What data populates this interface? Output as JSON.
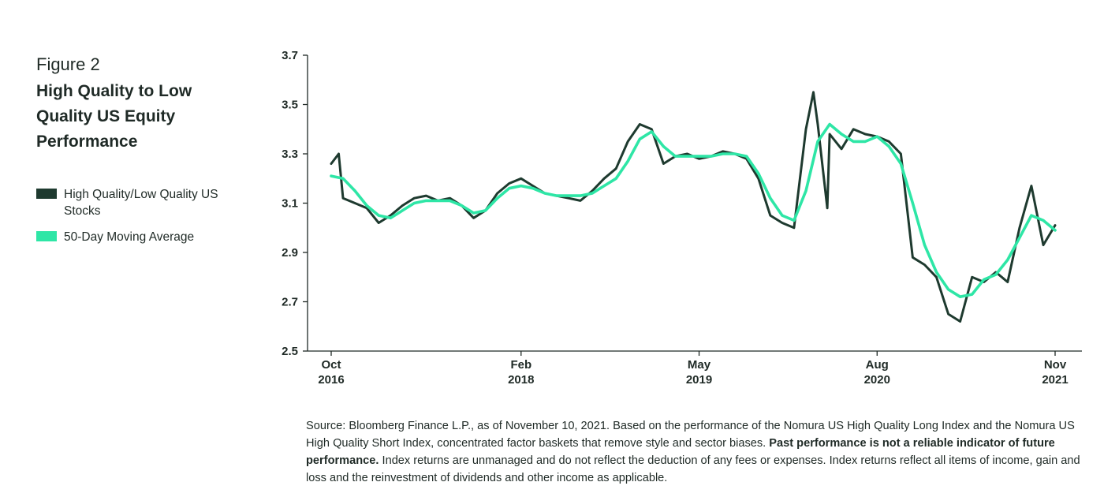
{
  "figure": {
    "label": "Figure 2",
    "title": "High Quality to Low Quality US Equity Performance"
  },
  "legend": [
    {
      "label": "High Quality/Low Quality US Stocks",
      "color": "#1e3a2f"
    },
    {
      "label": "50-Day Moving Average",
      "color": "#2ee6a6"
    }
  ],
  "chart_data": {
    "type": "line",
    "title": "High Quality to Low Quality US Equity Performance",
    "xlabel": "",
    "ylabel": "",
    "ylim": [
      2.5,
      3.7
    ],
    "yticks": [
      "3.7",
      "3.5",
      "3.3",
      "3.1",
      "2.9",
      "2.7",
      "2.5"
    ],
    "xticks": [
      {
        "x": "2016-10",
        "line1": "Oct",
        "line2": "2016"
      },
      {
        "x": "2018-02",
        "line1": "Feb",
        "line2": "2018"
      },
      {
        "x": "2019-05",
        "line1": "May",
        "line2": "2019"
      },
      {
        "x": "2020-08",
        "line1": "Aug",
        "line2": "2020"
      },
      {
        "x": "2021-11",
        "line1": "Nov",
        "line2": "2021"
      }
    ],
    "grid": false,
    "legend_position": "left",
    "series": [
      {
        "name": "High Quality/Low Quality US Stocks",
        "color": "#1e3a2f",
        "points": [
          [
            "2016-10",
            3.26
          ],
          [
            "2016-10-20",
            3.3
          ],
          [
            "2016-11",
            3.12
          ],
          [
            "2016-12",
            3.1
          ],
          [
            "2017-01",
            3.08
          ],
          [
            "2017-02",
            3.02
          ],
          [
            "2017-03",
            3.05
          ],
          [
            "2017-04",
            3.09
          ],
          [
            "2017-05",
            3.12
          ],
          [
            "2017-06",
            3.13
          ],
          [
            "2017-07",
            3.11
          ],
          [
            "2017-08",
            3.12
          ],
          [
            "2017-09",
            3.09
          ],
          [
            "2017-10",
            3.04
          ],
          [
            "2017-11",
            3.07
          ],
          [
            "2017-12",
            3.14
          ],
          [
            "2018-01",
            3.18
          ],
          [
            "2018-02",
            3.2
          ],
          [
            "2018-03",
            3.17
          ],
          [
            "2018-04",
            3.14
          ],
          [
            "2018-05",
            3.13
          ],
          [
            "2018-06",
            3.12
          ],
          [
            "2018-07",
            3.11
          ],
          [
            "2018-08",
            3.15
          ],
          [
            "2018-09",
            3.2
          ],
          [
            "2018-10",
            3.24
          ],
          [
            "2018-11",
            3.35
          ],
          [
            "2018-12",
            3.42
          ],
          [
            "2019-01",
            3.4
          ],
          [
            "2019-02",
            3.26
          ],
          [
            "2019-03",
            3.29
          ],
          [
            "2019-04",
            3.3
          ],
          [
            "2019-05",
            3.28
          ],
          [
            "2019-06",
            3.29
          ],
          [
            "2019-07",
            3.31
          ],
          [
            "2019-08",
            3.3
          ],
          [
            "2019-09",
            3.28
          ],
          [
            "2019-10",
            3.2
          ],
          [
            "2019-11",
            3.05
          ],
          [
            "2019-12",
            3.02
          ],
          [
            "2020-01",
            3.0
          ],
          [
            "2020-02",
            3.4
          ],
          [
            "2020-02-20",
            3.55
          ],
          [
            "2020-03",
            3.42
          ],
          [
            "2020-03-25",
            3.08
          ],
          [
            "2020-04",
            3.38
          ],
          [
            "2020-05",
            3.32
          ],
          [
            "2020-06",
            3.4
          ],
          [
            "2020-07",
            3.38
          ],
          [
            "2020-08",
            3.37
          ],
          [
            "2020-09",
            3.35
          ],
          [
            "2020-10",
            3.3
          ],
          [
            "2020-11",
            2.88
          ],
          [
            "2020-12",
            2.85
          ],
          [
            "2021-01",
            2.8
          ],
          [
            "2021-02",
            2.65
          ],
          [
            "2021-03",
            2.62
          ],
          [
            "2021-04",
            2.8
          ],
          [
            "2021-05",
            2.78
          ],
          [
            "2021-06",
            2.82
          ],
          [
            "2021-07",
            2.78
          ],
          [
            "2021-08",
            3.0
          ],
          [
            "2021-09",
            3.17
          ],
          [
            "2021-10",
            2.93
          ],
          [
            "2021-11",
            3.01
          ]
        ]
      },
      {
        "name": "50-Day Moving Average",
        "color": "#2ee6a6",
        "points": [
          [
            "2016-10",
            3.21
          ],
          [
            "2016-11",
            3.2
          ],
          [
            "2016-12",
            3.15
          ],
          [
            "2017-01",
            3.09
          ],
          [
            "2017-02",
            3.05
          ],
          [
            "2017-03",
            3.04
          ],
          [
            "2017-04",
            3.07
          ],
          [
            "2017-05",
            3.1
          ],
          [
            "2017-06",
            3.11
          ],
          [
            "2017-07",
            3.11
          ],
          [
            "2017-08",
            3.11
          ],
          [
            "2017-09",
            3.09
          ],
          [
            "2017-10",
            3.06
          ],
          [
            "2017-11",
            3.07
          ],
          [
            "2017-12",
            3.12
          ],
          [
            "2018-01",
            3.16
          ],
          [
            "2018-02",
            3.17
          ],
          [
            "2018-03",
            3.16
          ],
          [
            "2018-04",
            3.14
          ],
          [
            "2018-05",
            3.13
          ],
          [
            "2018-06",
            3.13
          ],
          [
            "2018-07",
            3.13
          ],
          [
            "2018-08",
            3.14
          ],
          [
            "2018-09",
            3.17
          ],
          [
            "2018-10",
            3.2
          ],
          [
            "2018-11",
            3.27
          ],
          [
            "2018-12",
            3.36
          ],
          [
            "2019-01",
            3.39
          ],
          [
            "2019-02",
            3.33
          ],
          [
            "2019-03",
            3.29
          ],
          [
            "2019-04",
            3.29
          ],
          [
            "2019-05",
            3.29
          ],
          [
            "2019-06",
            3.29
          ],
          [
            "2019-07",
            3.3
          ],
          [
            "2019-08",
            3.3
          ],
          [
            "2019-09",
            3.29
          ],
          [
            "2019-10",
            3.22
          ],
          [
            "2019-11",
            3.12
          ],
          [
            "2019-12",
            3.05
          ],
          [
            "2020-01",
            3.03
          ],
          [
            "2020-02",
            3.15
          ],
          [
            "2020-03",
            3.35
          ],
          [
            "2020-04",
            3.42
          ],
          [
            "2020-05",
            3.38
          ],
          [
            "2020-06",
            3.35
          ],
          [
            "2020-07",
            3.35
          ],
          [
            "2020-08",
            3.37
          ],
          [
            "2020-09",
            3.33
          ],
          [
            "2020-10",
            3.26
          ],
          [
            "2020-11",
            3.1
          ],
          [
            "2020-12",
            2.93
          ],
          [
            "2021-01",
            2.82
          ],
          [
            "2021-02",
            2.75
          ],
          [
            "2021-03",
            2.72
          ],
          [
            "2021-04",
            2.73
          ],
          [
            "2021-05",
            2.79
          ],
          [
            "2021-06",
            2.81
          ],
          [
            "2021-07",
            2.87
          ],
          [
            "2021-08",
            2.96
          ],
          [
            "2021-09",
            3.05
          ],
          [
            "2021-10",
            3.03
          ],
          [
            "2021-11",
            2.99
          ]
        ]
      }
    ]
  },
  "source": {
    "text_1": "Source: Bloomberg Finance L.P., as of November 10, 2021. Based on the performance of the Nomura US High Quality Long Index and the Nomura US High Quality Short Index, concentrated factor baskets that remove style and sector biases. ",
    "bold": "Past performance is not a reliable indicator of future performance.",
    "text_2": " Index returns are unmanaged and do not reflect the deduction of any fees or expenses. Index returns reflect all items of income, gain and loss and the reinvestment of dividends and other income as applicable."
  }
}
